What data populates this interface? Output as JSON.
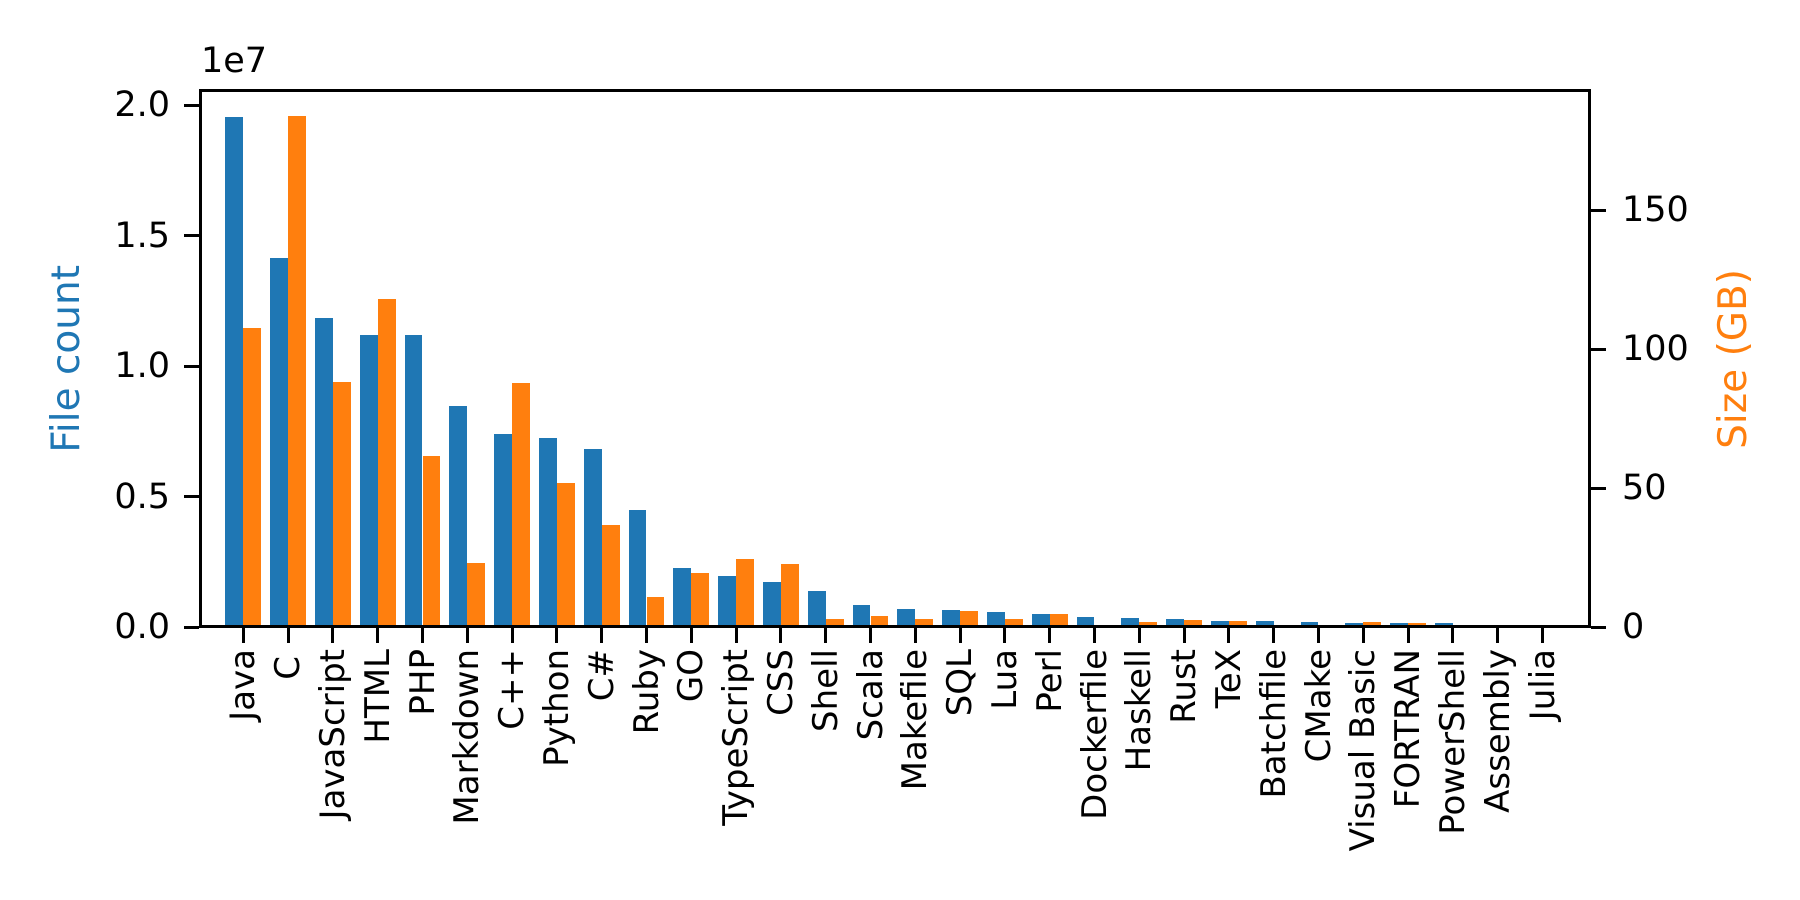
{
  "figure": {
    "background_color": "#ffffff",
    "text_color": "#000000",
    "blue_color": "#1f77b4",
    "orange_color": "#ff7f0e"
  },
  "chart_data": {
    "type": "bar",
    "title": "",
    "xlabel": "",
    "ylabel_left": "File count",
    "ylabel_right": "Size (GB)",
    "left_axis_offset_text": "1e7",
    "legend_position": "none",
    "grid": false,
    "categories": [
      "Java",
      "C",
      "JavaScript",
      "HTML",
      "PHP",
      "Markdown",
      "C++",
      "Python",
      "C#",
      "Ruby",
      "GO",
      "TypeScript",
      "CSS",
      "Shell",
      "Scala",
      "Makefile",
      "SQL",
      "Lua",
      "Perl",
      "Dockerfile",
      "Haskell",
      "Rust",
      "TeX",
      "Batchfile",
      "CMake",
      "Visual Basic",
      "FORTRAN",
      "PowerShell",
      "Assembly",
      "Julia"
    ],
    "series": [
      {
        "name": "File count",
        "axis": "left",
        "color": "#1f77b4",
        "values": [
          19550000,
          14140000,
          11840000,
          11180000,
          11180000,
          8460000,
          7380000,
          7230000,
          6810000,
          4470000,
          2270000,
          1940000,
          1730000,
          1390000,
          840000,
          680000,
          660000,
          580000,
          500000,
          370000,
          340000,
          320000,
          250000,
          240000,
          180000,
          160000,
          140000,
          140000,
          80000,
          60000
        ]
      },
      {
        "name": "Size (GB)",
        "axis": "right",
        "color": "#ff7f0e",
        "values": [
          107.7,
          183.8,
          88.0,
          118.1,
          61.4,
          23.1,
          87.7,
          52.0,
          36.8,
          10.9,
          19.3,
          24.6,
          22.7,
          3.0,
          3.9,
          2.9,
          5.7,
          2.8,
          4.7,
          0.7,
          1.9,
          2.7,
          2.2,
          0.7,
          0.5,
          1.9,
          1.6,
          0.7,
          0.8,
          0.3
        ]
      }
    ],
    "left_axis": {
      "tick_labels": [
        "0.0",
        "0.5",
        "1.0",
        "1.5",
        "2.0"
      ],
      "tick_values": [
        0,
        5000000,
        10000000,
        15000000,
        20000000
      ],
      "ylim": [
        0,
        20575000
      ],
      "label_color": "#1f77b4"
    },
    "right_axis": {
      "tick_labels": [
        "0",
        "50",
        "100",
        "150"
      ],
      "tick_values": [
        0,
        50,
        100,
        150
      ],
      "ylim": [
        0,
        193.2
      ],
      "label_color": "#ff7f0e"
    }
  }
}
